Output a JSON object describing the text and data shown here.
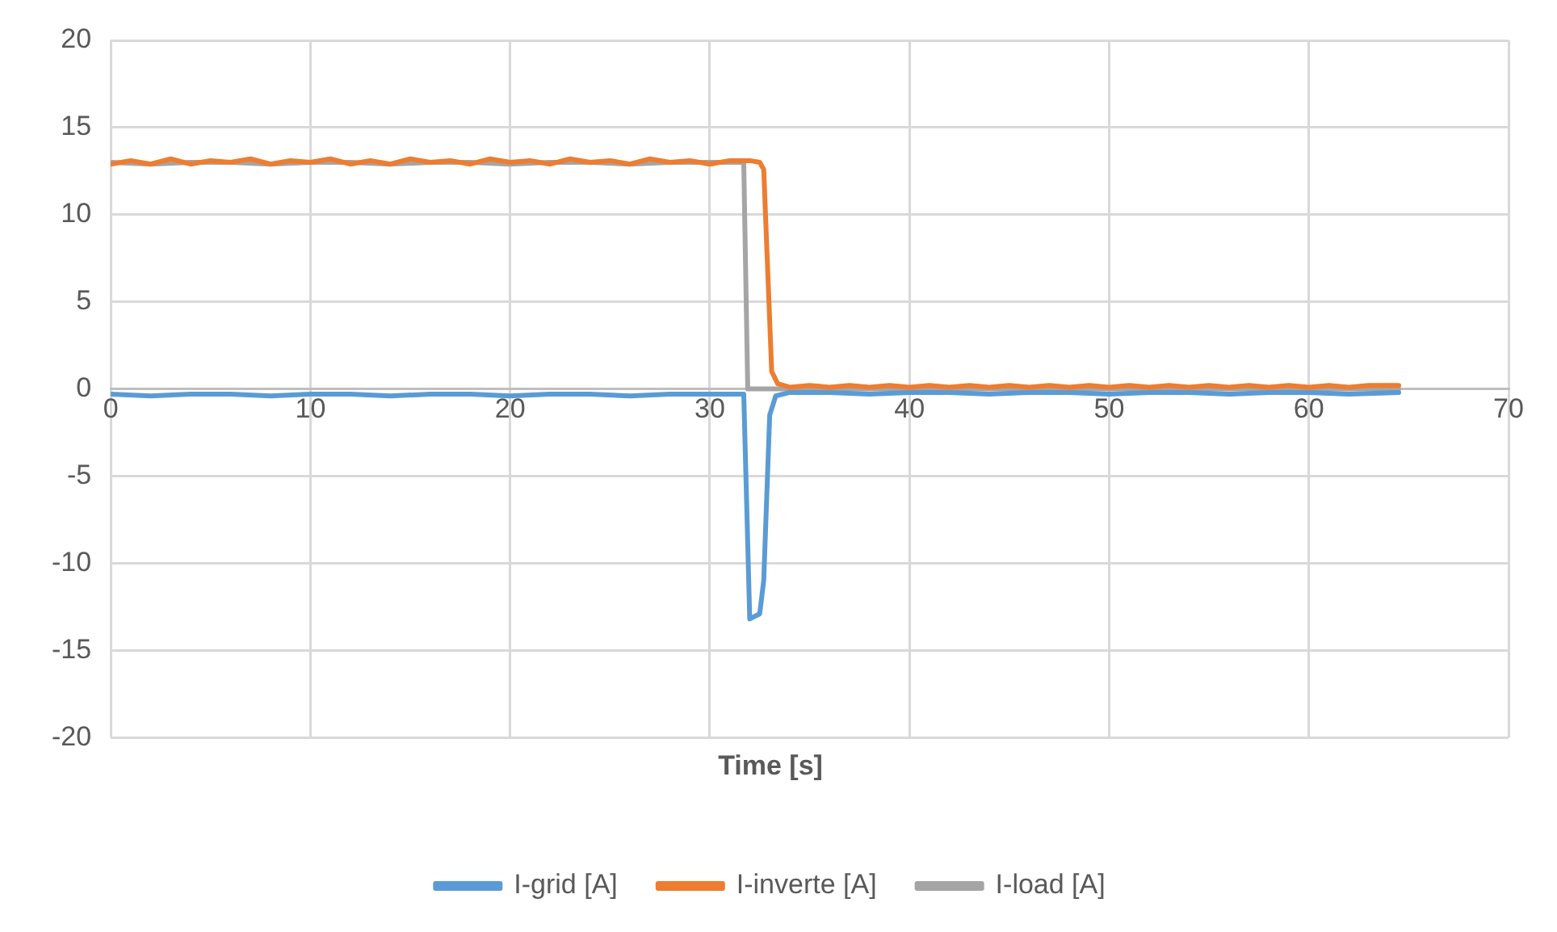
{
  "chart_data": {
    "type": "line",
    "xlabel": "Time [s]",
    "xlim": [
      0,
      70
    ],
    "xticks": [
      0,
      10,
      20,
      30,
      40,
      50,
      60,
      70
    ],
    "ylim": [
      -20,
      20
    ],
    "yticks": [
      -20,
      -15,
      -10,
      -5,
      0,
      5,
      10,
      15,
      20
    ],
    "grid": true,
    "legend": "bottom",
    "marker": "none",
    "line_style": "solid",
    "series": [
      {
        "name": "I-grid [A]",
        "color": "#5b9bd5",
        "x": [
          0,
          2,
          4,
          6,
          8,
          10,
          12,
          14,
          16,
          18,
          20,
          22,
          24,
          26,
          28,
          30,
          31.7,
          32,
          32.5,
          32.7,
          33,
          33.3,
          34,
          36,
          38,
          40,
          42,
          44,
          46,
          48,
          50,
          52,
          54,
          56,
          58,
          60,
          62,
          64.5
        ],
        "values": [
          -0.3,
          -0.4,
          -0.3,
          -0.3,
          -0.4,
          -0.3,
          -0.3,
          -0.4,
          -0.3,
          -0.3,
          -0.4,
          -0.3,
          -0.3,
          -0.4,
          -0.3,
          -0.3,
          -0.3,
          -13.2,
          -12.9,
          -11,
          -1.5,
          -0.4,
          -0.2,
          -0.2,
          -0.3,
          -0.2,
          -0.2,
          -0.3,
          -0.2,
          -0.2,
          -0.3,
          -0.2,
          -0.2,
          -0.3,
          -0.2,
          -0.2,
          -0.3,
          -0.2
        ]
      },
      {
        "name": "I-inverte [A]",
        "color": "#ed7d31",
        "x": [
          0,
          1,
          2,
          3,
          4,
          5,
          6,
          7,
          8,
          9,
          10,
          11,
          12,
          13,
          14,
          15,
          16,
          17,
          18,
          19,
          20,
          21,
          22,
          23,
          24,
          25,
          26,
          27,
          28,
          29,
          30,
          31,
          32,
          32.5,
          32.7,
          33.1,
          33.4,
          34,
          35,
          36,
          37,
          38,
          39,
          40,
          41,
          42,
          43,
          44,
          45,
          46,
          47,
          48,
          49,
          50,
          51,
          52,
          53,
          54,
          55,
          56,
          57,
          58,
          59,
          60,
          61,
          62,
          63,
          64.5
        ],
        "values": [
          12.9,
          13.1,
          12.9,
          13.2,
          12.9,
          13.1,
          13,
          13.2,
          12.9,
          13.1,
          13,
          13.2,
          12.9,
          13.1,
          12.9,
          13.2,
          13,
          13.1,
          12.9,
          13.2,
          13,
          13.1,
          12.9,
          13.2,
          13,
          13.1,
          12.9,
          13.2,
          13,
          13.1,
          12.9,
          13.1,
          13.1,
          13,
          12.6,
          1,
          0.3,
          0.1,
          0.2,
          0.1,
          0.2,
          0.1,
          0.2,
          0.1,
          0.2,
          0.1,
          0.2,
          0.1,
          0.2,
          0.1,
          0.2,
          0.1,
          0.2,
          0.1,
          0.2,
          0.1,
          0.2,
          0.1,
          0.2,
          0.1,
          0.2,
          0.1,
          0.2,
          0.1,
          0.2,
          0.1,
          0.2,
          0.2
        ]
      },
      {
        "name": "I-load [A]",
        "color": "#a5a5a5",
        "x": [
          0,
          2,
          4,
          6,
          8,
          10,
          12,
          14,
          16,
          18,
          20,
          22,
          24,
          26,
          28,
          30,
          31.7,
          31.9,
          34,
          40,
          50,
          60,
          64.5
        ],
        "values": [
          13,
          12.9,
          13,
          13,
          12.9,
          13,
          13,
          12.9,
          13,
          13,
          12.9,
          13,
          13,
          12.9,
          13,
          13,
          13,
          0,
          0,
          0,
          0,
          0,
          0
        ]
      }
    ]
  }
}
